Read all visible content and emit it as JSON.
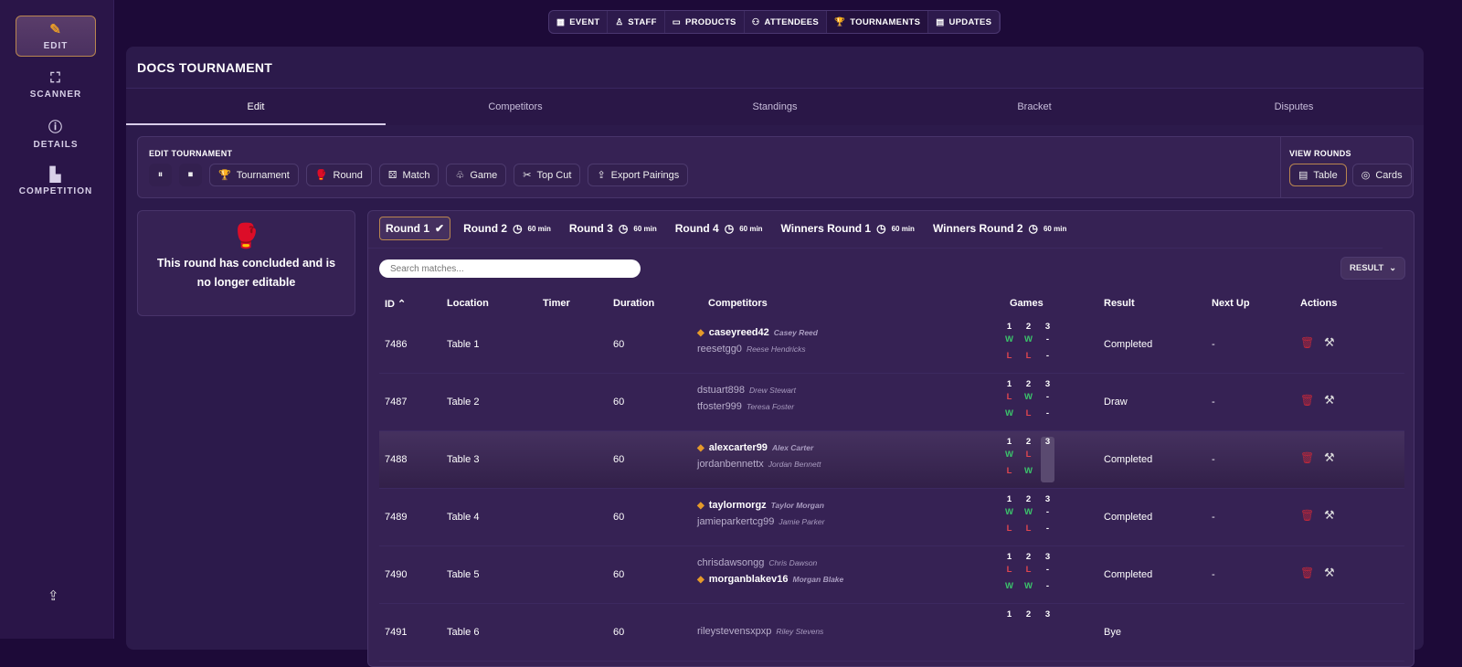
{
  "sidebar": {
    "items": [
      {
        "label": "EDIT",
        "icon": "pencil-icon",
        "active": true
      },
      {
        "label": "SCANNER",
        "icon": "scanner-icon"
      },
      {
        "label": "DETAILS",
        "icon": "info-icon"
      },
      {
        "label": "COMPETITION",
        "icon": "podium-icon"
      }
    ]
  },
  "topnav": [
    {
      "label": "EVENT",
      "icon": "calendar-icon"
    },
    {
      "label": "STAFF",
      "icon": "person-icon"
    },
    {
      "label": "PRODUCTS",
      "icon": "ticket-icon"
    },
    {
      "label": "ATTENDEES",
      "icon": "people-icon"
    },
    {
      "label": "TOURNAMENTS",
      "icon": "trophy-icon",
      "active": true
    },
    {
      "label": "UPDATES",
      "icon": "news-icon"
    }
  ],
  "title": "DOCS TOURNAMENT",
  "tabs": [
    "Edit",
    "Competitors",
    "Standings",
    "Bracket",
    "Disputes"
  ],
  "edit": {
    "heading": "EDIT TOURNAMENT",
    "buttons": [
      "Tournament",
      "Round",
      "Match",
      "Game",
      "Top Cut",
      "Export Pairings"
    ]
  },
  "view_rounds": {
    "heading": "VIEW ROUNDS",
    "table": "Table",
    "cards": "Cards"
  },
  "notice": "This round has concluded and is no longer editable",
  "rounds": [
    {
      "label": "Round 1",
      "done": true
    },
    {
      "label": "Round 2",
      "time": "60 min"
    },
    {
      "label": "Round 3",
      "time": "60 min"
    },
    {
      "label": "Round 4",
      "time": "60 min"
    },
    {
      "label": "Winners Round 1",
      "time": "60 min"
    },
    {
      "label": "Winners Round 2",
      "time": "60 min"
    }
  ],
  "search_placeholder": "Search matches...",
  "result_filter": "RESULT",
  "columns": [
    "ID",
    "Location",
    "Timer",
    "Duration",
    "Competitors",
    "Games",
    "Result",
    "Next Up",
    "Actions"
  ],
  "matches": [
    {
      "id": "7486",
      "location": "Table 1",
      "duration": "60",
      "players": [
        {
          "user": "caseyreed42",
          "name": "Casey Reed",
          "winner": true,
          "games": [
            "W",
            "W",
            "-"
          ]
        },
        {
          "user": "reesetgg0",
          "name": "Reese Hendricks",
          "games": [
            "L",
            "L",
            "-"
          ]
        }
      ],
      "result": "Completed",
      "next": "-"
    },
    {
      "id": "7487",
      "location": "Table 2",
      "duration": "60",
      "players": [
        {
          "user": "dstuart898",
          "name": "Drew Stewart",
          "games": [
            "L",
            "W",
            "-"
          ]
        },
        {
          "user": "tfoster999",
          "name": "Teresa Foster",
          "games": [
            "W",
            "L",
            "-"
          ]
        }
      ],
      "result": "Draw",
      "next": "-"
    },
    {
      "id": "7488",
      "location": "Table 3",
      "duration": "60",
      "highlight": true,
      "players": [
        {
          "user": "alexcarter99",
          "name": "Alex Carter",
          "winner": true,
          "games": [
            "W",
            "L",
            "W"
          ]
        },
        {
          "user": "jordanbennettx",
          "name": "Jordan Bennett",
          "games": [
            "L",
            "W",
            "L"
          ]
        }
      ],
      "result": "Completed",
      "next": "-"
    },
    {
      "id": "7489",
      "location": "Table 4",
      "duration": "60",
      "players": [
        {
          "user": "taylormorgz",
          "name": "Taylor Morgan",
          "winner": true,
          "games": [
            "W",
            "W",
            "-"
          ]
        },
        {
          "user": "jamieparkertcg99",
          "name": "Jamie Parker",
          "games": [
            "L",
            "L",
            "-"
          ]
        }
      ],
      "result": "Completed",
      "next": "-"
    },
    {
      "id": "7490",
      "location": "Table 5",
      "duration": "60",
      "players": [
        {
          "user": "chrisdawsongg",
          "name": "Chris Dawson",
          "games": [
            "L",
            "L",
            "-"
          ]
        },
        {
          "user": "morganblakev16",
          "name": "Morgan Blake",
          "winner": true,
          "games": [
            "W",
            "W",
            "-"
          ]
        }
      ],
      "result": "Completed",
      "next": "-"
    },
    {
      "id": "7491",
      "location": "Table 6",
      "duration": "60",
      "players": [
        {
          "user": "rileystevensxpxp",
          "name": "Riley Stevens",
          "games": []
        }
      ],
      "result": "Bye",
      "next": ""
    }
  ]
}
